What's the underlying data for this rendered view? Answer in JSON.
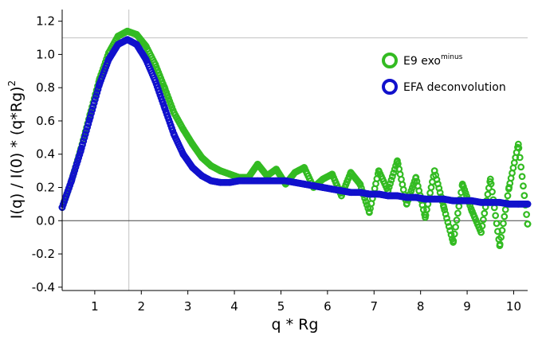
{
  "chart_data": {
    "type": "scatter",
    "xlabel": "q * Rg",
    "ylabel": "I(q) / I(0) * (q*Rg)",
    "ylabel_superscript": "2",
    "xlim": [
      0.3,
      10.3
    ],
    "ylim": [
      -0.42,
      1.27
    ],
    "x_ticks": [
      "1",
      "2",
      "3",
      "4",
      "5",
      "6",
      "7",
      "8",
      "9",
      "10"
    ],
    "y_ticks": [
      "-0.4",
      "-0.2",
      "0.0",
      "0.2",
      "0.4",
      "0.6",
      "0.8",
      "1.0",
      "1.2"
    ],
    "reference_lines": {
      "horizontal_y": 1.1,
      "vertical_x": 1.732,
      "zero_y": 0.0
    },
    "legend_placement": "top-right",
    "colors": {
      "green": "#33bb22",
      "blue": "#1111cc",
      "reference": "#cccccc",
      "zero": "#444444"
    },
    "series": [
      {
        "name": "E9 exo",
        "name_superscript": "minus",
        "color": "#33bb22",
        "points": [
          [
            0.3,
            0.08
          ],
          [
            0.5,
            0.24
          ],
          [
            0.7,
            0.43
          ],
          [
            0.9,
            0.64
          ],
          [
            1.1,
            0.85
          ],
          [
            1.3,
            1.01
          ],
          [
            1.5,
            1.11
          ],
          [
            1.7,
            1.14
          ],
          [
            1.9,
            1.12
          ],
          [
            2.1,
            1.05
          ],
          [
            2.3,
            0.94
          ],
          [
            2.5,
            0.8
          ],
          [
            2.7,
            0.65
          ],
          [
            2.9,
            0.55
          ],
          [
            3.1,
            0.46
          ],
          [
            3.3,
            0.38
          ],
          [
            3.5,
            0.33
          ],
          [
            3.7,
            0.3
          ],
          [
            3.9,
            0.28
          ],
          [
            4.1,
            0.26
          ],
          [
            4.3,
            0.26
          ],
          [
            4.5,
            0.34
          ],
          [
            4.7,
            0.27
          ],
          [
            4.9,
            0.31
          ],
          [
            5.1,
            0.22
          ],
          [
            5.3,
            0.29
          ],
          [
            5.5,
            0.32
          ],
          [
            5.7,
            0.2
          ],
          [
            5.9,
            0.25
          ],
          [
            6.1,
            0.28
          ],
          [
            6.3,
            0.15
          ],
          [
            6.5,
            0.29
          ],
          [
            6.7,
            0.22
          ],
          [
            6.9,
            0.05
          ],
          [
            7.1,
            0.3
          ],
          [
            7.3,
            0.18
          ],
          [
            7.5,
            0.36
          ],
          [
            7.7,
            0.1
          ],
          [
            7.9,
            0.26
          ],
          [
            8.1,
            0.02
          ],
          [
            8.3,
            0.3
          ],
          [
            8.5,
            0.08
          ],
          [
            8.7,
            -0.13
          ],
          [
            8.9,
            0.22
          ],
          [
            9.1,
            0.06
          ],
          [
            9.3,
            -0.07
          ],
          [
            9.5,
            0.25
          ],
          [
            9.7,
            -0.15
          ],
          [
            9.9,
            0.2
          ],
          [
            10.1,
            0.46
          ],
          [
            10.3,
            -0.02
          ]
        ]
      },
      {
        "name": "EFA deconvolution",
        "color": "#1111cc",
        "points": [
          [
            0.3,
            0.08
          ],
          [
            0.5,
            0.24
          ],
          [
            0.7,
            0.42
          ],
          [
            0.9,
            0.62
          ],
          [
            1.1,
            0.82
          ],
          [
            1.3,
            0.97
          ],
          [
            1.5,
            1.06
          ],
          [
            1.7,
            1.09
          ],
          [
            1.9,
            1.06
          ],
          [
            2.1,
            0.97
          ],
          [
            2.3,
            0.84
          ],
          [
            2.5,
            0.68
          ],
          [
            2.7,
            0.52
          ],
          [
            2.9,
            0.4
          ],
          [
            3.1,
            0.32
          ],
          [
            3.3,
            0.27
          ],
          [
            3.5,
            0.24
          ],
          [
            3.7,
            0.23
          ],
          [
            3.9,
            0.23
          ],
          [
            4.1,
            0.24
          ],
          [
            4.3,
            0.24
          ],
          [
            4.5,
            0.24
          ],
          [
            4.7,
            0.24
          ],
          [
            4.9,
            0.24
          ],
          [
            5.1,
            0.24
          ],
          [
            5.3,
            0.23
          ],
          [
            5.5,
            0.22
          ],
          [
            5.7,
            0.21
          ],
          [
            5.9,
            0.2
          ],
          [
            6.1,
            0.19
          ],
          [
            6.3,
            0.18
          ],
          [
            6.5,
            0.17
          ],
          [
            6.7,
            0.17
          ],
          [
            6.9,
            0.16
          ],
          [
            7.1,
            0.16
          ],
          [
            7.3,
            0.15
          ],
          [
            7.5,
            0.15
          ],
          [
            7.7,
            0.14
          ],
          [
            7.9,
            0.14
          ],
          [
            8.1,
            0.13
          ],
          [
            8.3,
            0.13
          ],
          [
            8.5,
            0.13
          ],
          [
            8.7,
            0.12
          ],
          [
            8.9,
            0.12
          ],
          [
            9.1,
            0.12
          ],
          [
            9.3,
            0.11
          ],
          [
            9.5,
            0.11
          ],
          [
            9.7,
            0.11
          ],
          [
            9.9,
            0.1
          ],
          [
            10.1,
            0.1
          ],
          [
            10.3,
            0.1
          ]
        ]
      }
    ]
  }
}
